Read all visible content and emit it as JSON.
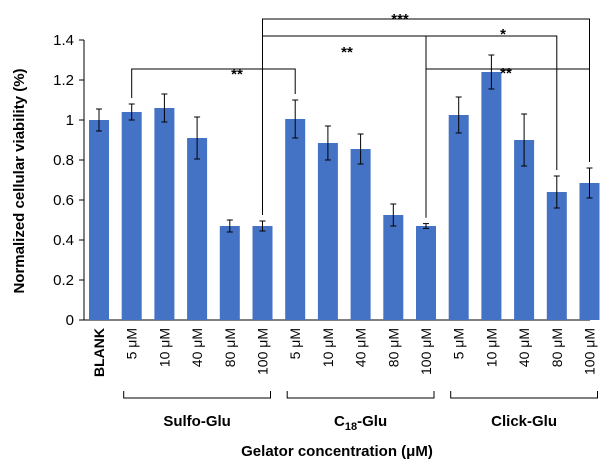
{
  "chart_data": {
    "type": "bar",
    "xlabel": "Gelator concentration (μM)",
    "ylabel": "Normalized cellular viability (%)",
    "ylim": [
      0,
      1.4
    ],
    "yticks": [
      "0",
      "0.2",
      "0.4",
      "0.6",
      "0.8",
      "1",
      "1.2",
      "1.4"
    ],
    "grid": false,
    "bar_color": "#4472c4",
    "categories": [
      "BLANK",
      "5 μM",
      "10 μM",
      "40 μM",
      "80 μM",
      "100 μM",
      "5 μM",
      "10 μM",
      "40 μM",
      "80 μM",
      "100 μM",
      "5 μM",
      "10 μM",
      "40 μM",
      "80 μM",
      "100 μM"
    ],
    "values": [
      1.0,
      1.04,
      1.06,
      0.91,
      0.47,
      0.47,
      1.005,
      0.885,
      0.855,
      0.525,
      0.47,
      1.025,
      1.24,
      0.9,
      0.64,
      0.685
    ],
    "errors": [
      0.055,
      0.04,
      0.07,
      0.105,
      0.03,
      0.025,
      0.095,
      0.085,
      0.075,
      0.055,
      0.012,
      0.09,
      0.085,
      0.13,
      0.08,
      0.075
    ],
    "groups": [
      {
        "label_main": "Sulfo-Glu",
        "label_sub": "",
        "label_tail": "",
        "start": 1,
        "end": 5
      },
      {
        "label_main": "C",
        "label_sub": "18",
        "label_tail": "-Glu",
        "start": 6,
        "end": 10
      },
      {
        "label_main": "Click-Glu",
        "label_sub": "",
        "label_tail": "",
        "start": 11,
        "end": 15
      }
    ],
    "significance": [
      {
        "label": "***",
        "from": 5,
        "to": 15,
        "level": 1.5
      },
      {
        "label": "**",
        "from": 5,
        "to": 10,
        "level": 1.5
      },
      {
        "label": "**",
        "from": 1,
        "to": 6,
        "level": 1.5
      },
      {
        "label": "*",
        "from": 10,
        "to": 14,
        "level": 1.5
      },
      {
        "label": "**",
        "from": 10,
        "to": 15,
        "level": 1.5
      }
    ]
  }
}
